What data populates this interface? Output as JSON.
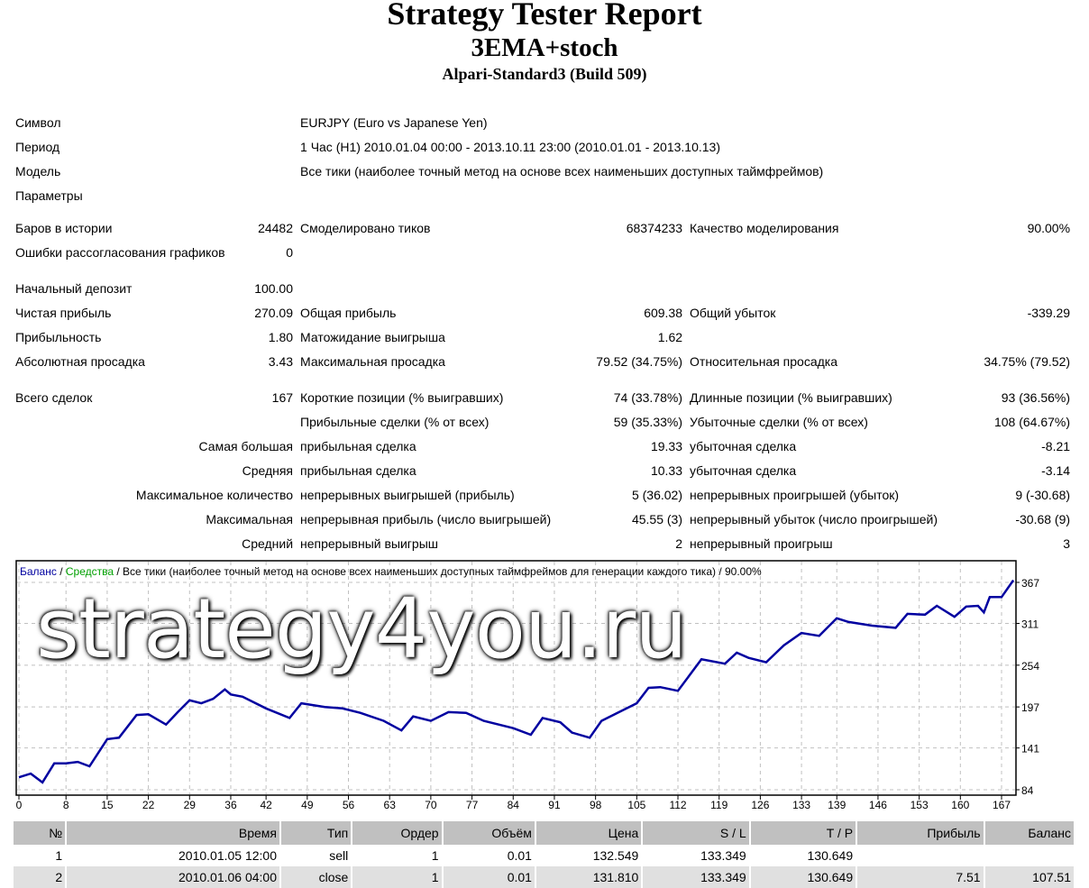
{
  "header": {
    "title": "Strategy Tester Report",
    "expert": "3EMA+stoch",
    "server": "Alpari-Standard3 (Build 509)"
  },
  "info": {
    "symbol_label": "Символ",
    "symbol": "EURJPY (Euro vs Japanese Yen)",
    "period_label": "Период",
    "period": "1 Час (H1) 2010.01.04 00:00 - 2013.10.11 23:00 (2010.01.01 - 2013.10.13)",
    "model_label": "Модель",
    "model": "Все тики (наиболее точный метод на основе всех наименьших доступных таймфреймов)",
    "params_label": "Параметры"
  },
  "stats": {
    "bars_label": "Баров в истории",
    "bars": "24482",
    "ticks_label": "Смоделировано тиков",
    "ticks": "68374233",
    "quality_label": "Качество моделирования",
    "quality": "90.00%",
    "mismatch_label": "Ошибки рассогласования графиков",
    "mismatch": "0",
    "deposit_label": "Начальный депозит",
    "deposit": "100.00",
    "net_label": "Чистая прибыль",
    "net": "270.09",
    "gross_profit_label": "Общая прибыль",
    "gross_profit": "609.38",
    "gross_loss_label": "Общий убыток",
    "gross_loss": "-339.29",
    "pf_label": "Прибыльность",
    "pf": "1.80",
    "expected_label": "Матожидание выигрыша",
    "expected": "1.62",
    "abs_dd_label": "Абсолютная просадка",
    "abs_dd": "3.43",
    "max_dd_label": "Максимальная просадка",
    "max_dd": "79.52 (34.75%)",
    "rel_dd_label": "Относительная просадка",
    "rel_dd": "34.75% (79.52)",
    "total_label": "Всего сделок",
    "total": "167",
    "short_label": "Короткие позиции (% выигравших)",
    "short": "74 (33.78%)",
    "long_label": "Длинные позиции (% выигравших)",
    "long": "93 (36.56%)",
    "profit_trades_label": "Прибыльные сделки (% от всех)",
    "profit_trades": "59 (35.33%)",
    "loss_trades_label": "Убыточные сделки (% от всех)",
    "loss_trades": "108 (64.67%)",
    "largest_label": "Самая большая",
    "largest_profit_label": "прибыльная сделка",
    "largest_profit": "19.33",
    "largest_loss_label": "убыточная сделка",
    "largest_loss": "-8.21",
    "average_label": "Средняя",
    "average_profit_label": "прибыльная сделка",
    "average_profit": "10.33",
    "average_loss_label": "убыточная сделка",
    "average_loss": "-3.14",
    "max_count_label": "Максимальное количество",
    "cons_wins_label": "непрерывных выигрышей (прибыль)",
    "cons_wins": "5 (36.02)",
    "cons_losses_label": "непрерывных проигрышей (убыток)",
    "cons_losses": "9 (-30.68)",
    "maximal_label": "Максимальная",
    "cons_profit_label": "непрерывная прибыль (число выигрышей)",
    "cons_profit": "45.55 (3)",
    "cons_loss_label": "непрерывный убыток (число проигрышей)",
    "cons_loss": "-30.68 (9)",
    "avg_label": "Средний",
    "avg_wins_label": "непрерывный выигрыш",
    "avg_wins": "2",
    "avg_losses_label": "непрерывный проигрыш",
    "avg_losses": "3"
  },
  "watermark": "strategy4you.ru",
  "chart_data": {
    "type": "line",
    "legend": {
      "balance": "Баланс",
      "sep1": " / ",
      "equity": "Средства",
      "rest": " / Все тики (наиболее точный метод на основе всех наименьших доступных таймфреймов для генерации каждого тика) / 90.00%"
    },
    "colors": {
      "balance": "#0000a0",
      "equity": "#00a000",
      "grid": "#c0c0c0"
    },
    "x_ticks": [
      0,
      8,
      15,
      22,
      29,
      36,
      42,
      49,
      56,
      63,
      70,
      77,
      84,
      91,
      98,
      105,
      112,
      119,
      126,
      133,
      139,
      146,
      153,
      160,
      167
    ],
    "y_ticks": [
      84,
      141,
      197,
      254,
      311,
      367
    ],
    "xlim": [
      0,
      169
    ],
    "ylim": [
      84,
      367
    ],
    "grid": true,
    "series": [
      {
        "x": [
          0,
          2,
          4,
          6,
          8,
          10,
          12,
          15,
          17,
          20,
          22,
          25,
          27,
          29,
          31,
          33,
          35,
          36,
          38,
          42,
          46,
          48,
          52,
          55,
          58,
          62,
          65,
          67,
          70,
          73,
          76,
          79,
          84,
          87,
          89,
          92,
          94,
          97,
          99,
          102,
          105,
          107,
          109,
          112,
          116,
          120,
          122,
          124,
          127,
          130,
          133,
          136,
          139,
          141,
          145,
          149,
          151,
          154,
          156,
          159,
          161,
          163,
          164,
          165,
          167,
          169
        ],
        "y": [
          101,
          106,
          94,
          120,
          120,
          122,
          116,
          153,
          155,
          186,
          187,
          173,
          190,
          206,
          202,
          208,
          221,
          214,
          211,
          195,
          182,
          202,
          197,
          195,
          189,
          178,
          165,
          184,
          178,
          190,
          189,
          178,
          168,
          159,
          182,
          176,
          162,
          155,
          178,
          190,
          202,
          223,
          224,
          219,
          262,
          256,
          271,
          264,
          258,
          281,
          298,
          294,
          318,
          313,
          308,
          305,
          324,
          323,
          335,
          320,
          334,
          335,
          326,
          347,
          347,
          370
        ]
      }
    ]
  },
  "deals": {
    "columns": [
      "№",
      "Время",
      "Тип",
      "Ордер",
      "Объём",
      "Цена",
      "S / L",
      "T / P",
      "Прибыль",
      "Баланс"
    ],
    "rows": [
      [
        "1",
        "2010.01.05 12:00",
        "sell",
        "1",
        "0.01",
        "132.549",
        "133.349",
        "130.649",
        "",
        ""
      ],
      [
        "2",
        "2010.01.06 04:00",
        "close",
        "1",
        "0.01",
        "131.810",
        "133.349",
        "130.649",
        "7.51",
        "107.51"
      ]
    ]
  }
}
